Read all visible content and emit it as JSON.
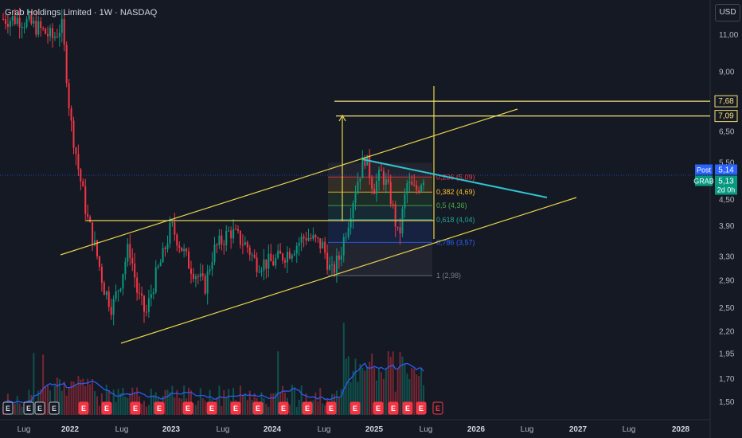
{
  "header": {
    "title": "Grab Holdings Limited · 1W · NASDAQ",
    "currency_button": "USD"
  },
  "chart_data": {
    "type": "candlestick",
    "symbol": "GRAB",
    "exchange": "NASDAQ",
    "interval": "1W",
    "y_scale": "log",
    "y_ticks": [
      "11,00",
      "9,00",
      "7,68",
      "7,09",
      "6,50",
      "5,50",
      "5,14",
      "5,13",
      "4,50",
      "3,90",
      "3,30",
      "2,90",
      "2,50",
      "2,20",
      "1,95",
      "1,70",
      "1,50"
    ],
    "x_ticks": [
      {
        "label": "Lug",
        "bold": false
      },
      {
        "label": "2022",
        "bold": true
      },
      {
        "label": "Lug",
        "bold": false
      },
      {
        "label": "2023",
        "bold": true
      },
      {
        "label": "Lug",
        "bold": false
      },
      {
        "label": "2024",
        "bold": true
      },
      {
        "label": "Lug",
        "bold": false
      },
      {
        "label": "2025",
        "bold": true
      },
      {
        "label": "Lug",
        "bold": false
      },
      {
        "label": "2026",
        "bold": true
      },
      {
        "label": "Lug",
        "bold": false
      },
      {
        "label": "2027",
        "bold": true
      },
      {
        "label": "Lug",
        "bold": false
      },
      {
        "label": "2028",
        "bold": true
      }
    ],
    "price_path": [
      [
        "2021-07",
        12.0
      ],
      [
        "2021-09",
        11.5
      ],
      [
        "2021-11",
        10.8
      ],
      [
        "2021-12",
        11.6
      ],
      [
        "2022-01",
        7.0
      ],
      [
        "2022-02",
        5.3
      ],
      [
        "2022-03",
        4.1
      ],
      [
        "2022-05",
        2.8
      ],
      [
        "2022-06",
        2.5
      ],
      [
        "2022-07",
        2.9
      ],
      [
        "2022-08",
        3.5
      ],
      [
        "2022-09",
        2.7
      ],
      [
        "2022-10",
        2.4
      ],
      [
        "2022-11",
        2.9
      ],
      [
        "2022-12",
        3.3
      ],
      [
        "2023-01",
        3.9
      ],
      [
        "2023-03",
        3.2
      ],
      [
        "2023-05",
        2.8
      ],
      [
        "2023-06",
        3.4
      ],
      [
        "2023-08",
        3.8
      ],
      [
        "2023-10",
        3.5
      ],
      [
        "2023-11",
        3.2
      ],
      [
        "2024-01",
        3.2
      ],
      [
        "2024-03",
        3.4
      ],
      [
        "2024-05",
        3.7
      ],
      [
        "2024-07",
        3.5
      ],
      [
        "2024-08",
        3.0
      ],
      [
        "2024-09",
        3.3
      ],
      [
        "2024-10",
        4.0
      ],
      [
        "2024-11",
        4.9
      ],
      [
        "2024-12",
        5.7
      ],
      [
        "2025-01",
        4.8
      ],
      [
        "2025-02",
        5.2
      ],
      [
        "2025-03",
        4.6
      ],
      [
        "2025-04",
        3.6
      ],
      [
        "2025-05",
        4.9
      ],
      [
        "2025-06",
        4.7
      ],
      [
        "2025-07",
        5.14
      ]
    ],
    "volume_series_color": "#2962ff",
    "fibonacci": [
      {
        "label": "0,236 (5,09)",
        "value": 5.09,
        "color": "#f23645"
      },
      {
        "label": "0,382 (4,69)",
        "value": 4.69,
        "color": "#fbc02d"
      },
      {
        "label": "0,5 (4,36)",
        "value": 4.36,
        "color": "#4caf50"
      },
      {
        "label": "0,618 (4,04)",
        "value": 4.04,
        "color": "#26a69a"
      },
      {
        "label": "0,786 (3,57)",
        "value": 3.57,
        "color": "#2962ff"
      },
      {
        "label": "1 (2,98)",
        "value": 2.98,
        "color": "#787b86"
      }
    ],
    "horizontal_levels": [
      {
        "label": "7,68",
        "value": 7.68,
        "color": "#f5e07a"
      },
      {
        "label": "7,09",
        "value": 7.09,
        "color": "#f5e07a"
      }
    ],
    "price_tags": [
      {
        "label": "Post",
        "value": "5,14",
        "color": "#2962ff"
      },
      {
        "label": "GRAB",
        "value": "5,13",
        "sub": "2d 0h",
        "color": "#089981"
      }
    ],
    "up_color": "#089981",
    "down_color": "#f23645",
    "grid": false,
    "earnings_marker": "E"
  }
}
